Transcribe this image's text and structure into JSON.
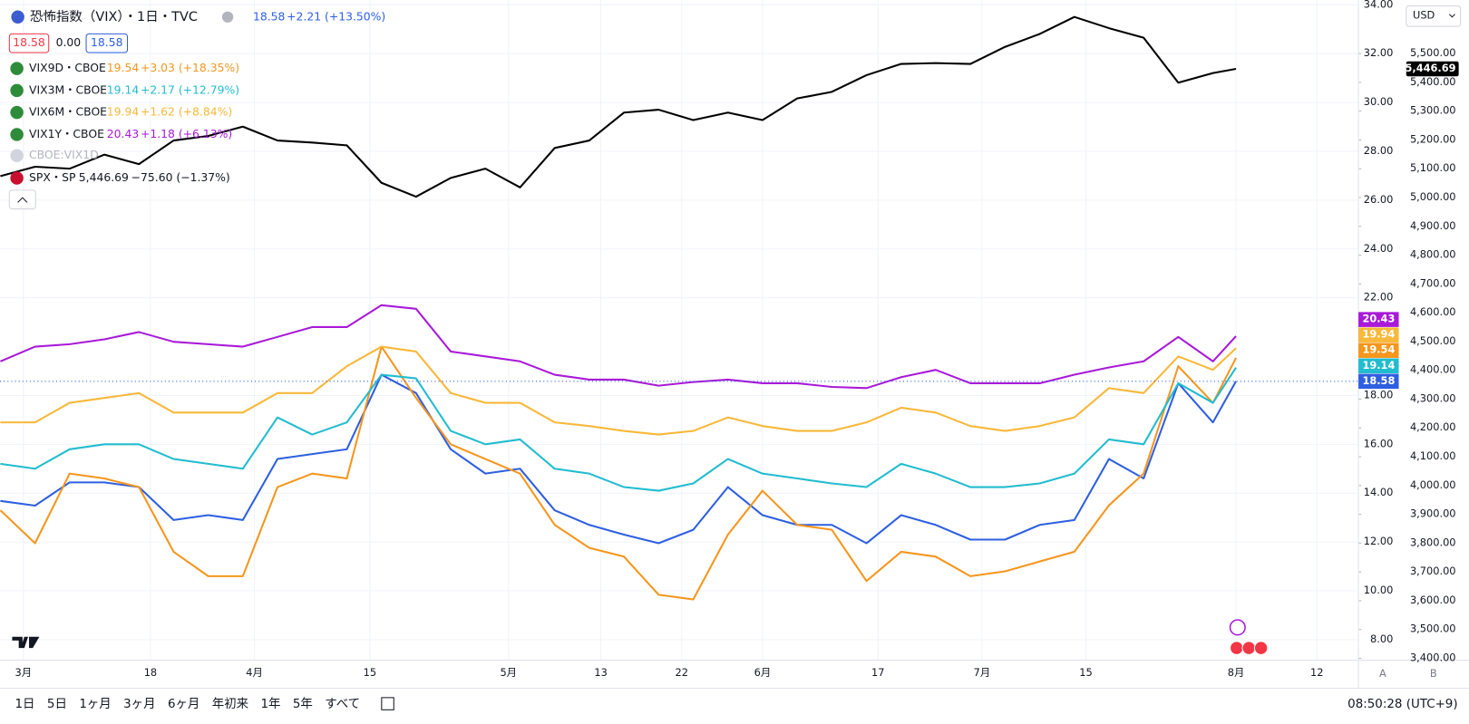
{
  "chart_data": {
    "type": "line",
    "x": [
      -2,
      1,
      4,
      7,
      10,
      13,
      16,
      19,
      22,
      25,
      28,
      31,
      34,
      37,
      40,
      43,
      46,
      49,
      52,
      55,
      58,
      61,
      64,
      67,
      70,
      73,
      76,
      79,
      82,
      85,
      88,
      91,
      94,
      97,
      100,
      103,
      105
    ],
    "xlim": [
      -2.03,
      115.6
    ],
    "xticks": [
      {
        "value": 0,
        "label": "3月"
      },
      {
        "value": 11,
        "label": "18"
      },
      {
        "value": 20,
        "label": "4月"
      },
      {
        "value": 30,
        "label": "15"
      },
      {
        "value": 42,
        "label": "5月"
      },
      {
        "value": 50,
        "label": "13"
      },
      {
        "value": 57,
        "label": "22"
      },
      {
        "value": 64,
        "label": "6月"
      },
      {
        "value": 74,
        "label": "17"
      },
      {
        "value": 83,
        "label": "7月"
      },
      {
        "value": 92,
        "label": "15"
      },
      {
        "value": 105,
        "label": "8月"
      },
      {
        "value": 112,
        "label": "12"
      }
    ],
    "ylim": [
      7.16,
      34.19
    ],
    "yticks": [
      {
        "value": 34,
        "label": "34.00"
      },
      {
        "value": 32,
        "label": "32.00"
      },
      {
        "value": 30,
        "label": "30.00"
      },
      {
        "value": 28,
        "label": "28.00"
      },
      {
        "value": 26,
        "label": "26.00"
      },
      {
        "value": 24,
        "label": "24.00"
      },
      {
        "value": 22,
        "label": "22.00"
      },
      {
        "value": 18,
        "label": "18.00"
      },
      {
        "value": 16,
        "label": "16.00"
      },
      {
        "value": 14,
        "label": "14.00"
      },
      {
        "value": 12,
        "label": "12.00"
      },
      {
        "value": 10,
        "label": "10.00"
      },
      {
        "value": 8,
        "label": "8.00"
      }
    ],
    "y2lim": [
      3393.5,
      5685.3
    ],
    "y2ticks": [
      {
        "value": 5500,
        "label": "5,500.00"
      },
      {
        "value": 5400,
        "label": "5,400.00"
      },
      {
        "value": 5300,
        "label": "5,300.00"
      },
      {
        "value": 5200,
        "label": "5,200.00"
      },
      {
        "value": 5100,
        "label": "5,100.00"
      },
      {
        "value": 5000,
        "label": "5,000.00"
      },
      {
        "value": 4900,
        "label": "4,900.00"
      },
      {
        "value": 4800,
        "label": "4,800.00"
      },
      {
        "value": 4700,
        "label": "4,700.00"
      },
      {
        "value": 4600,
        "label": "4,600.00"
      },
      {
        "value": 4500,
        "label": "4,500.00"
      },
      {
        "value": 4400,
        "label": "4,400.00"
      },
      {
        "value": 4300,
        "label": "4,300.00"
      },
      {
        "value": 4200,
        "label": "4,200.00"
      },
      {
        "value": 4100,
        "label": "4,100.00"
      },
      {
        "value": 4000,
        "label": "4,000.00"
      },
      {
        "value": 3900,
        "label": "3,900.00"
      },
      {
        "value": 3800,
        "label": "3,800.00"
      },
      {
        "value": 3700,
        "label": "3,700.00"
      },
      {
        "value": 3600,
        "label": "3,600.00"
      },
      {
        "value": 3500,
        "label": "3,500.00"
      },
      {
        "value": 3400,
        "label": "3,400.00"
      }
    ],
    "grid": true,
    "series": [
      {
        "name": "恐怖指数（VIX）・1日・TVC",
        "color": "#2e5fe0",
        "change": "+2.21 (+13.50%)",
        "values": [
          13.68,
          13.49,
          14.44,
          14.44,
          14.25,
          12.9,
          13.1,
          12.9,
          15.4,
          15.6,
          15.8,
          18.85,
          18.1,
          15.8,
          14.8,
          15.0,
          13.3,
          12.7,
          12.3,
          11.95,
          12.5,
          14.25,
          13.1,
          12.7,
          12.7,
          11.95,
          13.1,
          12.7,
          12.1,
          12.1,
          12.7,
          12.9,
          15.4,
          14.6,
          18.5,
          16.9,
          18.58
        ]
      },
      {
        "name": "VIX9D・CBOE",
        "color": "#f5961d",
        "change": "+3.03 (+18.35%)",
        "values": [
          13.3,
          11.95,
          14.8,
          14.6,
          14.25,
          11.6,
          10.6,
          10.6,
          14.25,
          14.8,
          14.6,
          20.0,
          17.9,
          16.0,
          15.4,
          14.8,
          12.7,
          11.76,
          11.4,
          9.84,
          9.65,
          12.3,
          14.1,
          12.7,
          12.5,
          10.4,
          11.6,
          11.4,
          10.6,
          10.8,
          11.2,
          11.6,
          13.5,
          14.8,
          19.2,
          17.7,
          19.54
        ]
      },
      {
        "name": "VIX3M・CBOE",
        "color": "#22bccf",
        "change": "+2.17 (+12.79%)",
        "values": [
          15.2,
          15.0,
          15.8,
          16.0,
          16.0,
          15.4,
          15.2,
          15.0,
          17.1,
          16.4,
          16.9,
          18.85,
          18.7,
          16.55,
          16.0,
          16.2,
          15.0,
          14.8,
          14.25,
          14.1,
          14.4,
          15.4,
          14.8,
          14.6,
          14.4,
          14.25,
          15.2,
          14.8,
          14.25,
          14.25,
          14.4,
          14.8,
          16.2,
          16.0,
          18.5,
          17.7,
          19.14
        ]
      },
      {
        "name": "VIX6M・CBOE",
        "color": "#f8b83a",
        "change": "+1.62 (+8.84%)",
        "values": [
          16.9,
          16.9,
          17.7,
          17.9,
          18.1,
          17.3,
          17.3,
          17.3,
          18.1,
          18.1,
          19.2,
          20.0,
          19.8,
          18.1,
          17.7,
          17.7,
          16.9,
          16.75,
          16.55,
          16.4,
          16.55,
          17.1,
          16.75,
          16.55,
          16.55,
          16.9,
          17.5,
          17.3,
          16.75,
          16.55,
          16.75,
          17.1,
          18.3,
          18.1,
          19.6,
          19.05,
          19.94
        ]
      },
      {
        "name": "VIX1Y・CBOE",
        "color": "#a81ad8",
        "change": "+1.18 (+6.13%)",
        "values": [
          19.4,
          20.0,
          20.1,
          20.3,
          20.6,
          20.2,
          20.1,
          20.0,
          20.4,
          20.8,
          20.8,
          21.7,
          21.55,
          19.8,
          19.6,
          19.4,
          18.85,
          18.65,
          18.65,
          18.4,
          18.55,
          18.65,
          18.5,
          18.5,
          18.35,
          18.3,
          18.75,
          19.05,
          18.5,
          18.5,
          18.5,
          18.85,
          19.15,
          19.4,
          20.4,
          19.4,
          20.43
        ]
      },
      {
        "name": "SPX・SP",
        "color": "#000000",
        "axis": "y2",
        "change": "−75.60 (−1.37%)",
        "values": [
          5074,
          5107,
          5100,
          5149,
          5116,
          5198,
          5214,
          5246,
          5198,
          5191,
          5181,
          5051,
          5003,
          5068,
          5100,
          5035,
          5172,
          5198,
          5295,
          5305,
          5269,
          5295,
          5269,
          5344,
          5367,
          5425,
          5464,
          5467,
          5464,
          5523,
          5568,
          5627,
          5588,
          5555,
          5399,
          5432,
          5446.69
        ],
        "value_labels": [
          null,
          null,
          null,
          null,
          null,
          null,
          null,
          null,
          null,
          null,
          null,
          null,
          null,
          null,
          null,
          null,
          null,
          null,
          null,
          null,
          null,
          null,
          null,
          null,
          null,
          null,
          null,
          null,
          null,
          null,
          null,
          null,
          null,
          null,
          null,
          null,
          "5,446.69"
        ]
      }
    ]
  },
  "quote_boxes": [
    "18.58",
    "0.00",
    "18.58"
  ],
  "hidden_series": "CBOE:VIX1D",
  "currency": "USD",
  "scale_buttons": [
    "A",
    "B"
  ],
  "toolbar": {
    "ranges": [
      "1日",
      "5日",
      "1ヶ月",
      "3ヶ月",
      "6ヶ月",
      "年初来",
      "1年",
      "5年",
      "すべて"
    ],
    "clock": "08:50:28 (UTC+9)"
  }
}
